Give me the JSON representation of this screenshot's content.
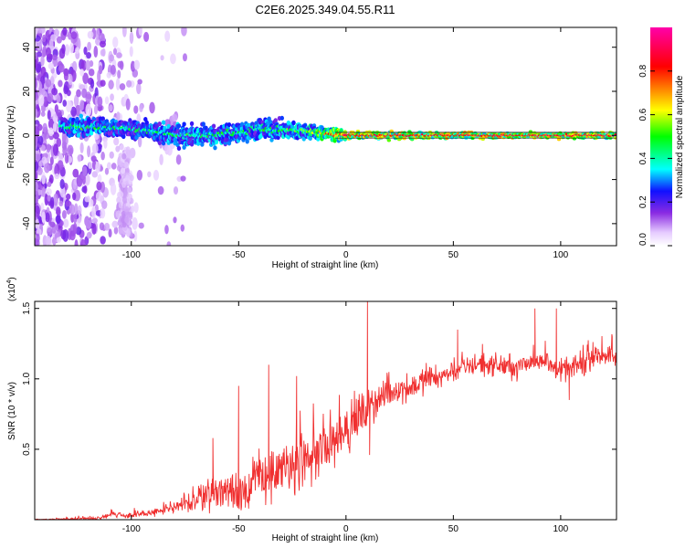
{
  "title": "C2E6.2025.349.04.55.R11",
  "chart_data": [
    {
      "type": "heatmap",
      "xlabel": "Height of straight line (km)",
      "ylabel": "Frequency (Hz)",
      "xlim": [
        -145,
        126
      ],
      "ylim": [
        -50,
        49
      ],
      "xticks": [
        -100,
        -50,
        0,
        50,
        100
      ],
      "yticks": [
        -40,
        -20,
        0,
        20,
        40
      ],
      "colorbar": {
        "label": "Normalized spectral amplitude",
        "range": [
          0.0,
          1.0
        ],
        "ticks": [
          0.0,
          0.2,
          0.4,
          0.6,
          0.8
        ],
        "tick_labels": [
          "0.0",
          "0.2",
          "0.4",
          "0.6",
          "0.8"
        ]
      },
      "ridge": {
        "description_points": [
          {
            "x": -120,
            "freq_center": 4,
            "freq_halfwidth": 4,
            "amplitude": 0.45
          },
          {
            "x": -100,
            "freq_center": 3,
            "freq_halfwidth": 4,
            "amplitude": 0.4
          },
          {
            "x": -80,
            "freq_center": 0,
            "freq_halfwidth": 5,
            "amplitude": 0.45
          },
          {
            "x": -60,
            "freq_center": 0,
            "freq_halfwidth": 5,
            "amplitude": 0.45
          },
          {
            "x": -40,
            "freq_center": 3,
            "freq_halfwidth": 5,
            "amplitude": 0.45
          },
          {
            "x": -20,
            "freq_center": 2,
            "freq_halfwidth": 4,
            "amplitude": 0.5
          },
          {
            "x": 0,
            "freq_center": 0,
            "freq_halfwidth": 2,
            "amplitude": 0.85
          },
          {
            "x": 50,
            "freq_center": 0,
            "freq_halfwidth": 1.5,
            "amplitude": 0.9
          },
          {
            "x": 125,
            "freq_center": 0,
            "freq_halfwidth": 1.5,
            "amplitude": 0.9
          }
        ]
      }
    },
    {
      "type": "line",
      "xlabel": "Height of straight line (km)",
      "ylabel": "SNR (10 * v/v)",
      "scale_label": "(x10",
      "scale_exponent": "4",
      "xlim": [
        -145,
        126
      ],
      "ylim": [
        0,
        1.55
      ],
      "xticks": [
        -100,
        -50,
        0,
        50,
        100
      ],
      "yticks": [
        0.5,
        1.0,
        1.5
      ],
      "ytick_labels": [
        "0.5",
        "1.0",
        "1.5"
      ],
      "series": [
        {
          "color": "#f03030",
          "trend": {
            "x": [
              -145,
              -115,
              -110,
              -100,
              -90,
              -80,
              -70,
              -60,
              -50,
              -40,
              -35,
              -30,
              -20,
              -10,
              0,
              5,
              10,
              15,
              20,
              30,
              40,
              50,
              60,
              70,
              80,
              90,
              100,
              110,
              120,
              126
            ],
            "y": [
              0.0,
              0.01,
              0.04,
              0.03,
              0.05,
              0.08,
              0.14,
              0.22,
              0.2,
              0.28,
              0.32,
              0.34,
              0.4,
              0.5,
              0.64,
              0.7,
              0.78,
              0.85,
              0.9,
              0.95,
              1.0,
              1.05,
              1.1,
              1.1,
              1.08,
              1.15,
              1.05,
              1.1,
              1.18,
              1.15
            ]
          },
          "noise": {
            "x": [
              -145,
              -110,
              -80,
              -60,
              -40,
              -20,
              0,
              20,
              50,
              100,
              126
            ],
            "amplitude": [
              0.003,
              0.02,
              0.05,
              0.16,
              0.22,
              0.25,
              0.2,
              0.12,
              0.09,
              0.1,
              0.08
            ]
          },
          "spikes": [
            {
              "x": -109,
              "y": 0.07
            },
            {
              "x": -62,
              "y": 0.58
            },
            {
              "x": -50,
              "y": 0.95
            },
            {
              "x": -36,
              "y": 1.1
            },
            {
              "x": -23,
              "y": 1.02
            },
            {
              "x": 10,
              "y": 1.55
            },
            {
              "x": 11,
              "y": 0.46
            },
            {
              "x": 52,
              "y": 1.35
            },
            {
              "x": 88,
              "y": 1.5
            },
            {
              "x": 98,
              "y": 1.5
            },
            {
              "x": 104,
              "y": 0.85
            },
            {
              "x": 124,
              "y": 1.3
            }
          ]
        }
      ]
    }
  ]
}
